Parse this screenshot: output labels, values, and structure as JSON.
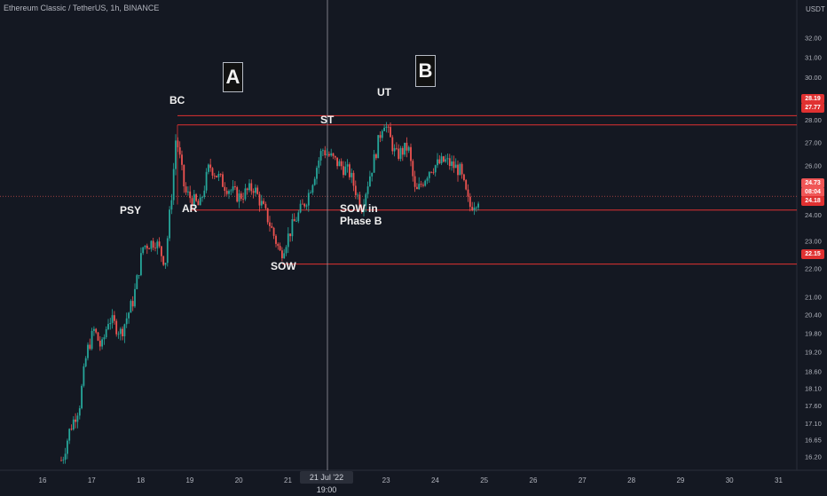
{
  "header": {
    "symbol_line": "Ethereum Classic / TetherUS, 1h, BINANCE"
  },
  "price_axis": {
    "currency": "USDT",
    "ticks": [
      "16.20",
      "16.65",
      "17.10",
      "17.60",
      "18.10",
      "18.60",
      "19.20",
      "19.80",
      "20.40",
      "21.00",
      "22.00",
      "23.00",
      "24.00",
      "25.00",
      "26.00",
      "27.00",
      "28.00",
      "29.00",
      "30.00",
      "31.00",
      "32.00"
    ]
  },
  "time_axis": {
    "ticks": [
      "16",
      "17",
      "18",
      "19",
      "20",
      "21",
      "22",
      "23",
      "24",
      "25",
      "26",
      "27",
      "28",
      "29",
      "30",
      "31"
    ],
    "crosshair_label": "21 Jul '22   19:00"
  },
  "annotations": {
    "phase_a": "A",
    "phase_b": "B",
    "psy": "PSY",
    "bc": "BC",
    "ar": "AR",
    "sow": "SOW",
    "st": "ST",
    "ut": "UT",
    "sow_b_line1": "SOW in",
    "sow_b_line2": "Phase B"
  },
  "price_labels": {
    "p1": "28.19",
    "p2": "27.77",
    "last_price": "24.73",
    "countdown": "08:04",
    "p3": "24.18",
    "p4": "22.15"
  },
  "colors": {
    "background": "#141822",
    "up": "#26a69a",
    "down": "#ef5350",
    "level_line": "#e03131",
    "crosshair": "#9598a1"
  },
  "chart_data": {
    "type": "candlestick",
    "title": "Ethereum Classic / TetherUS, 1h, BINANCE",
    "y_unit": "USDT",
    "x_range_days": [
      16,
      31
    ],
    "y_range_approx": [
      16.0,
      32.5
    ],
    "levels": [
      28.19,
      27.77,
      24.18,
      22.15
    ],
    "last_price": 24.73,
    "approx_closes": [
      {
        "day": 16.4,
        "close": 16.1
      },
      {
        "day": 16.55,
        "close": 16.9
      },
      {
        "day": 16.75,
        "close": 17.6
      },
      {
        "day": 16.9,
        "close": 19.2
      },
      {
        "day": 17.05,
        "close": 19.9
      },
      {
        "day": 17.2,
        "close": 19.3
      },
      {
        "day": 17.35,
        "close": 20.3
      },
      {
        "day": 17.6,
        "close": 19.8
      },
      {
        "day": 17.85,
        "close": 20.9
      },
      {
        "day": 18.05,
        "close": 22.8
      },
      {
        "day": 18.3,
        "close": 23.0
      },
      {
        "day": 18.5,
        "close": 22.2
      },
      {
        "day": 18.65,
        "close": 25.2
      },
      {
        "day": 18.72,
        "close": 27.3
      },
      {
        "day": 18.9,
        "close": 24.9
      },
      {
        "day": 19.2,
        "close": 24.3
      },
      {
        "day": 19.4,
        "close": 26.0
      },
      {
        "day": 19.7,
        "close": 25.2
      },
      {
        "day": 20.0,
        "close": 24.7
      },
      {
        "day": 20.3,
        "close": 25.1
      },
      {
        "day": 20.6,
        "close": 23.8
      },
      {
        "day": 20.85,
        "close": 22.5
      },
      {
        "day": 21.1,
        "close": 23.6
      },
      {
        "day": 21.4,
        "close": 24.7
      },
      {
        "day": 21.7,
        "close": 26.7
      },
      {
        "day": 21.95,
        "close": 26.2
      },
      {
        "day": 22.25,
        "close": 25.7
      },
      {
        "day": 22.5,
        "close": 24.3
      },
      {
        "day": 22.75,
        "close": 26.2
      },
      {
        "day": 22.95,
        "close": 28.0
      },
      {
        "day": 23.2,
        "close": 26.4
      },
      {
        "day": 23.45,
        "close": 26.8
      },
      {
        "day": 23.6,
        "close": 24.8
      },
      {
        "day": 23.9,
        "close": 25.9
      },
      {
        "day": 24.2,
        "close": 26.2
      },
      {
        "day": 24.5,
        "close": 25.8
      },
      {
        "day": 24.7,
        "close": 24.3
      },
      {
        "day": 24.9,
        "close": 24.7
      }
    ]
  }
}
